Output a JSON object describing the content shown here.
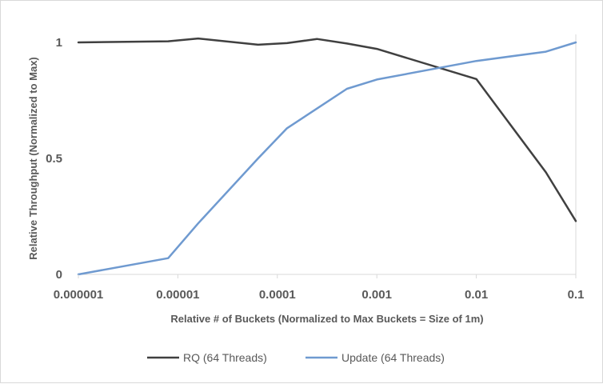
{
  "chart_data": {
    "type": "line",
    "title": "",
    "xlabel": "Relative # of Buckets (Normalized to Max Buckets = Size of 1m)",
    "ylabel": "Relative Throughput (Normalized to Max)",
    "x_scale": "log",
    "xlim": [
      1e-06,
      0.1
    ],
    "ylim": [
      0,
      1
    ],
    "x_ticks": [
      "0.000001",
      "0.00001",
      "0.0001",
      "0.001",
      "0.01",
      "0.1"
    ],
    "y_ticks": [
      "0",
      "0.5",
      "1"
    ],
    "grid": false,
    "legend_position": "bottom",
    "series": [
      {
        "name": "RQ (64 Threads)",
        "color": "#404040",
        "x": [
          1e-06,
          8e-06,
          1.6e-05,
          6.4e-05,
          0.000125,
          0.00025,
          0.0005,
          0.001,
          0.01,
          0.05,
          0.1
        ],
        "y": [
          1.0,
          1.005,
          1.017,
          0.99,
          0.997,
          1.015,
          0.995,
          0.972,
          0.842,
          0.44,
          0.23
        ]
      },
      {
        "name": "Update (64 Threads)",
        "color": "#6f9ad0",
        "x": [
          1e-06,
          8e-06,
          1.6e-05,
          6.4e-05,
          0.000125,
          0.00025,
          0.0005,
          0.001,
          0.01,
          0.05,
          0.1
        ],
        "y": [
          0.0,
          0.07,
          0.22,
          0.5,
          0.63,
          0.715,
          0.8,
          0.84,
          0.92,
          0.96,
          1.0
        ]
      }
    ]
  }
}
